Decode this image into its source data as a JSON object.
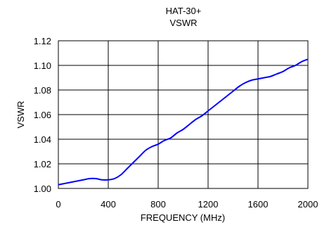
{
  "chart_data": {
    "type": "line",
    "title": "HAT-30+",
    "subtitle": "VSWR",
    "xlabel": "FREQUENCY (MHz)",
    "ylabel": "VSWR",
    "xlim": [
      0,
      2000
    ],
    "ylim": [
      1.0,
      1.12
    ],
    "x_ticks": [
      "0",
      "400",
      "800",
      "1200",
      "1600",
      "2000"
    ],
    "y_ticks": [
      "1.00",
      "1.02",
      "1.04",
      "1.06",
      "1.08",
      "1.10",
      "1.12"
    ],
    "grid": true,
    "series_color": "#0000ff",
    "series": [
      {
        "x": [
          0,
          50,
          100,
          150,
          200,
          250,
          300,
          350,
          400,
          450,
          500,
          550,
          600,
          650,
          700,
          750,
          800,
          850,
          900,
          950,
          1000,
          1050,
          1100,
          1150,
          1200,
          1250,
          1300,
          1350,
          1400,
          1450,
          1500,
          1550,
          1600,
          1650,
          1700,
          1750,
          1800,
          1850,
          1900,
          1950,
          2000
        ],
        "y": [
          1.003,
          1.004,
          1.005,
          1.006,
          1.007,
          1.008,
          1.008,
          1.007,
          1.007,
          1.008,
          1.011,
          1.016,
          1.021,
          1.026,
          1.031,
          1.034,
          1.036,
          1.039,
          1.041,
          1.045,
          1.048,
          1.052,
          1.056,
          1.059,
          1.063,
          1.067,
          1.071,
          1.075,
          1.079,
          1.083,
          1.086,
          1.088,
          1.089,
          1.09,
          1.091,
          1.093,
          1.095,
          1.098,
          1.1,
          1.103,
          1.105
        ]
      }
    ]
  }
}
